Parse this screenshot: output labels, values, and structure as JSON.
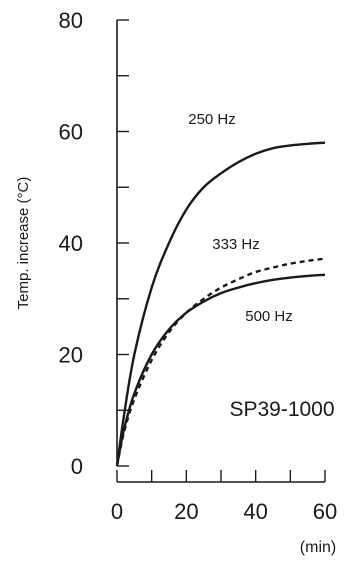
{
  "chart_data": {
    "type": "line",
    "title": "",
    "xlabel": "(min)",
    "ylabel": "Temp. increase (°C)",
    "xlim": [
      0,
      60
    ],
    "ylim": [
      0,
      80
    ],
    "x_ticks": [
      "0",
      "20",
      "40",
      "60"
    ],
    "y_ticks": [
      "0",
      "20",
      "40",
      "60",
      "80"
    ],
    "grid": false,
    "annotation": "SP39-1000",
    "series": [
      {
        "name": "250 Hz",
        "style": "solid",
        "x": [
          0,
          2,
          5,
          10,
          15,
          20,
          25,
          30,
          35,
          40,
          45,
          50,
          55,
          60
        ],
        "y": [
          0,
          9,
          20,
          32,
          40,
          46,
          50,
          52.5,
          54.5,
          56,
          57,
          57.5,
          57.8,
          58
        ]
      },
      {
        "name": "333 Hz",
        "style": "dashed",
        "x": [
          0,
          2,
          5,
          10,
          15,
          20,
          25,
          30,
          35,
          40,
          45,
          50,
          55,
          60
        ],
        "y": [
          0,
          6,
          12,
          19,
          24,
          27.5,
          30,
          32,
          33.5,
          34.8,
          35.6,
          36.3,
          36.8,
          37.2
        ]
      },
      {
        "name": "500 Hz",
        "style": "solid",
        "x": [
          0,
          2,
          5,
          10,
          15,
          20,
          25,
          30,
          35,
          40,
          45,
          50,
          55,
          60
        ],
        "y": [
          0,
          6.5,
          13,
          20,
          24.5,
          27.5,
          29.5,
          31,
          32,
          32.8,
          33.4,
          33.8,
          34.1,
          34.3
        ]
      }
    ]
  }
}
